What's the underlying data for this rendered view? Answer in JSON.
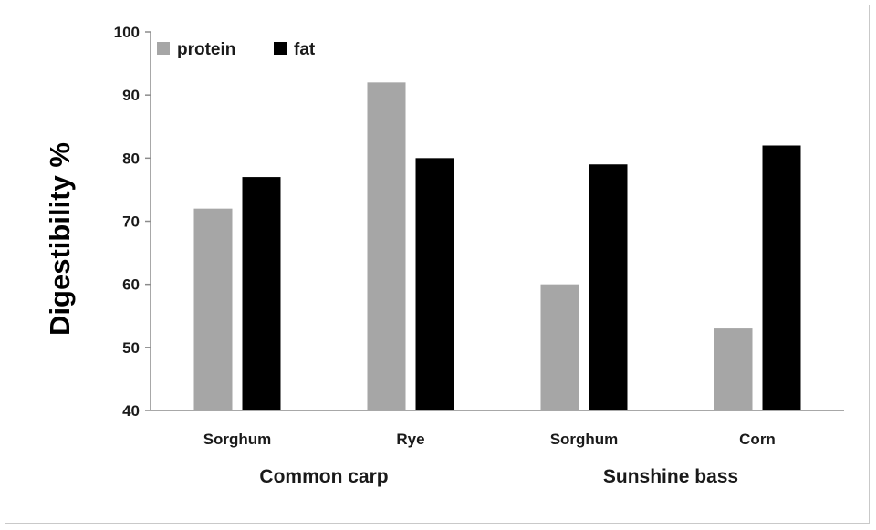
{
  "chart_data": {
    "type": "bar",
    "ylabel": "Digestibility %",
    "ylim": [
      40,
      100
    ],
    "yticks": [
      40,
      50,
      60,
      70,
      80,
      90,
      100
    ],
    "categories": [
      "Sorghum",
      "Rye",
      "Sorghum",
      "Corn"
    ],
    "groups": [
      {
        "label": "Common carp",
        "categories": [
          "Sorghum",
          "Rye"
        ]
      },
      {
        "label": "Sunshine bass",
        "categories": [
          "Sorghum",
          "Corn"
        ]
      }
    ],
    "series": [
      {
        "name": "protein",
        "color": "#a6a6a6",
        "values": [
          72,
          92,
          60,
          53
        ]
      },
      {
        "name": "fat",
        "color": "#000000",
        "values": [
          77,
          80,
          79,
          82
        ]
      }
    ],
    "legend_position": "top-left",
    "grid": false
  }
}
